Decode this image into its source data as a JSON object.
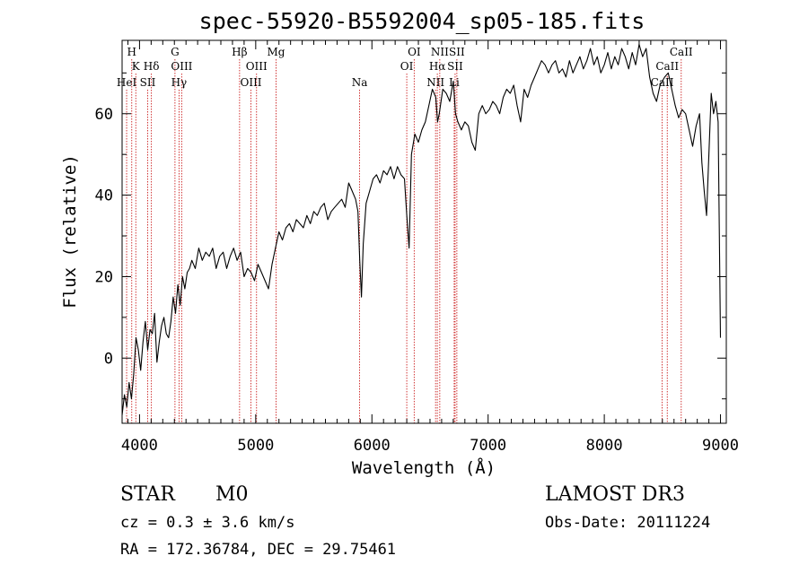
{
  "chart_data": {
    "type": "line",
    "title": "spec-55920-B5592004_sp05-185.fits",
    "xlabel": "Wavelength (Å)",
    "ylabel": "Flux (relative)",
    "xlim": [
      3850,
      9050
    ],
    "ylim": [
      -16,
      78
    ],
    "x_ticks": [
      4000,
      5000,
      6000,
      7000,
      8000,
      9000
    ],
    "y_ticks": [
      0,
      20,
      40,
      60
    ],
    "series": [
      {
        "name": "spectrum",
        "x": [
          3850,
          3870,
          3890,
          3910,
          3930,
          3950,
          3970,
          3990,
          4010,
          4030,
          4050,
          4070,
          4090,
          4110,
          4130,
          4150,
          4170,
          4190,
          4210,
          4230,
          4250,
          4270,
          4290,
          4310,
          4330,
          4350,
          4370,
          4390,
          4410,
          4430,
          4450,
          4480,
          4510,
          4540,
          4570,
          4600,
          4630,
          4660,
          4690,
          4720,
          4750,
          4780,
          4810,
          4840,
          4870,
          4900,
          4930,
          4960,
          4990,
          5020,
          5050,
          5080,
          5110,
          5140,
          5170,
          5200,
          5230,
          5260,
          5290,
          5320,
          5350,
          5380,
          5410,
          5440,
          5470,
          5500,
          5530,
          5560,
          5590,
          5620,
          5650,
          5680,
          5710,
          5740,
          5770,
          5800,
          5830,
          5860,
          5880,
          5895,
          5910,
          5925,
          5950,
          5980,
          6010,
          6040,
          6070,
          6100,
          6130,
          6160,
          6190,
          6220,
          6250,
          6280,
          6300,
          6320,
          6340,
          6370,
          6400,
          6430,
          6460,
          6490,
          6520,
          6550,
          6565,
          6580,
          6610,
          6640,
          6670,
          6700,
          6720,
          6740,
          6770,
          6800,
          6830,
          6860,
          6890,
          6920,
          6950,
          6980,
          7010,
          7040,
          7070,
          7100,
          7130,
          7160,
          7190,
          7220,
          7250,
          7280,
          7310,
          7340,
          7370,
          7400,
          7430,
          7460,
          7490,
          7520,
          7550,
          7580,
          7610,
          7640,
          7670,
          7700,
          7730,
          7760,
          7790,
          7820,
          7850,
          7880,
          7910,
          7940,
          7970,
          8000,
          8030,
          8060,
          8090,
          8120,
          8150,
          8180,
          8210,
          8240,
          8270,
          8300,
          8330,
          8360,
          8390,
          8420,
          8450,
          8480,
          8500,
          8520,
          8550,
          8580,
          8610,
          8640,
          8670,
          8700,
          8730,
          8760,
          8790,
          8820,
          8840,
          8860,
          8880,
          8900,
          8920,
          8940,
          8960,
          8980,
          9000
        ],
        "y": [
          -14,
          -9,
          -12,
          -6,
          -10,
          -4,
          5,
          2,
          -3,
          4,
          9,
          2,
          7,
          6,
          11,
          -1,
          4,
          8,
          10,
          6,
          5,
          9,
          15,
          11,
          18,
          13,
          20,
          17,
          21,
          22,
          24,
          22,
          27,
          24,
          26,
          25,
          27,
          22,
          25,
          26,
          22,
          25,
          27,
          24,
          26,
          20,
          22,
          21,
          19,
          23,
          21,
          19,
          17,
          23,
          27,
          31,
          29,
          32,
          33,
          31,
          34,
          33,
          32,
          35,
          33,
          36,
          35,
          37,
          38,
          34,
          36,
          37,
          38,
          39,
          37,
          43,
          41,
          39,
          36,
          24,
          15,
          28,
          38,
          41,
          44,
          45,
          43,
          46,
          45,
          47,
          44,
          47,
          45,
          44,
          35,
          27,
          50,
          55,
          53,
          56,
          58,
          62,
          66,
          64,
          58,
          60,
          66,
          65,
          63,
          68,
          60,
          58,
          56,
          58,
          57,
          53,
          51,
          60,
          62,
          60,
          61,
          63,
          62,
          60,
          64,
          66,
          65,
          67,
          62,
          58,
          66,
          64,
          67,
          69,
          71,
          73,
          72,
          70,
          72,
          73,
          70,
          71,
          69,
          73,
          70,
          72,
          74,
          71,
          73,
          76,
          72,
          74,
          70,
          72,
          75,
          71,
          74,
          72,
          76,
          74,
          71,
          75,
          72,
          77,
          74,
          76,
          69,
          65,
          63,
          67,
          68,
          69,
          70,
          66,
          62,
          59,
          61,
          60,
          56,
          52,
          57,
          60,
          48,
          41,
          35,
          50,
          65,
          60,
          63,
          58,
          5
        ]
      }
    ],
    "lines": [
      {
        "name": "H",
        "x": 3933,
        "row": 1
      },
      {
        "name": "K",
        "x": 3968,
        "row": 2
      },
      {
        "name": "HeI",
        "x": 3889,
        "row": 3
      },
      {
        "name": "SII",
        "x": 4070,
        "row": 3
      },
      {
        "name": "Hδ",
        "x": 4102,
        "row": 2
      },
      {
        "name": "G",
        "x": 4305,
        "row": 1
      },
      {
        "name": "OIII",
        "x": 4363,
        "row": 2
      },
      {
        "name": "Hγ",
        "x": 4340,
        "row": 3
      },
      {
        "name": "Hβ",
        "x": 4861,
        "row": 1
      },
      {
        "name": "OIII",
        "x": 5007,
        "row": 2
      },
      {
        "name": "OIII",
        "x": 4959,
        "row": 3
      },
      {
        "name": "Mg",
        "x": 5175,
        "row": 1
      },
      {
        "name": "Na",
        "x": 5894,
        "row": 3
      },
      {
        "name": "OI",
        "x": 6364,
        "row": 1
      },
      {
        "name": "OI",
        "x": 6300,
        "row": 2
      },
      {
        "name": "NII",
        "x": 6584,
        "row": 1
      },
      {
        "name": "Hα",
        "x": 6563,
        "row": 2
      },
      {
        "name": "NII",
        "x": 6548,
        "row": 3
      },
      {
        "name": "SII",
        "x": 6731,
        "row": 1
      },
      {
        "name": "SII",
        "x": 6716,
        "row": 2
      },
      {
        "name": "Li",
        "x": 6708,
        "row": 3
      },
      {
        "name": "CaII",
        "x": 8662,
        "row": 1
      },
      {
        "name": "CaII",
        "x": 8542,
        "row": 2
      },
      {
        "name": "CaII",
        "x": 8498,
        "row": 3
      }
    ]
  },
  "info": {
    "classification": "STAR",
    "subclass": "M0",
    "survey": "LAMOST DR3",
    "redshift": "cz = 0.3 ± 3.6 km/s",
    "obs_date": "Obs-Date: 20111224",
    "coords": "RA = 172.36784, DEC =  29.75461"
  },
  "colors": {
    "line_marker": "#cc2222",
    "spectrum": "#000000"
  }
}
